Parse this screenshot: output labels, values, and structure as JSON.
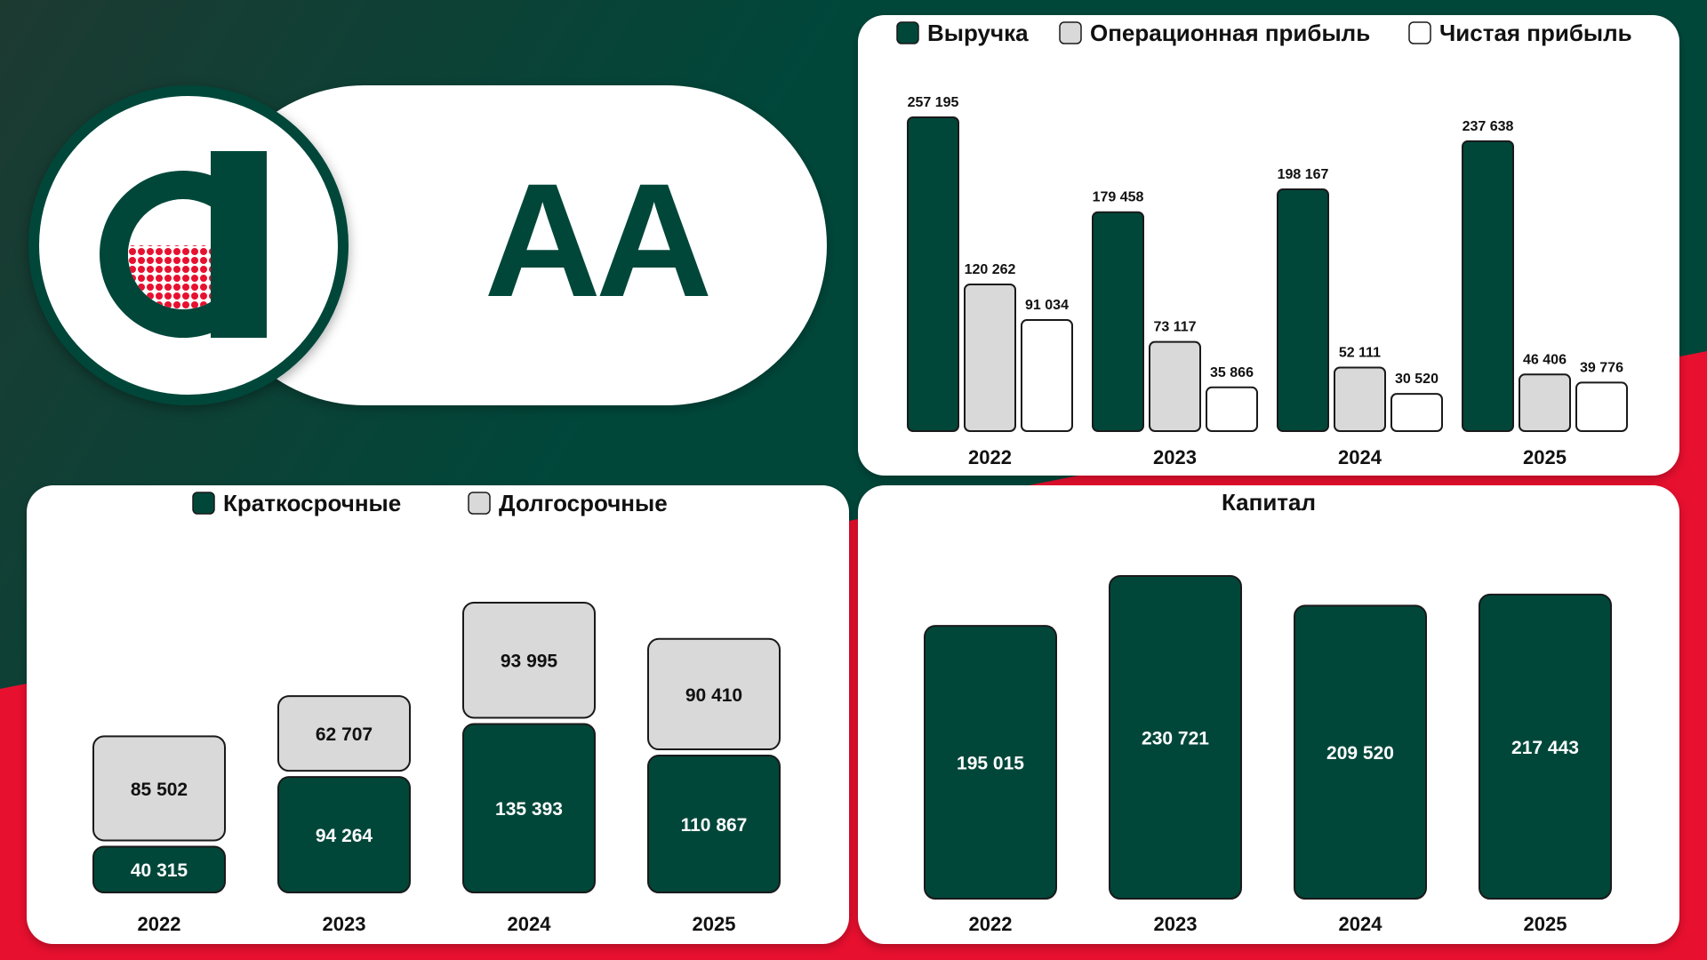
{
  "colors": {
    "dark_green": "#00473a",
    "light_gray": "#d9d9d9",
    "white": "#ffffff",
    "red": "#e8102f",
    "outline": "#1a1a1a"
  },
  "logo": {
    "ticker": "AA",
    "icon": "a-letter-logo-icon"
  },
  "chart_data": [
    {
      "type": "bar",
      "categories": [
        "2022",
        "2023",
        "2024",
        "2025"
      ],
      "series": [
        {
          "name": "Выручка",
          "values": [
            257195,
            179458,
            198167,
            237638
          ],
          "labels": [
            "257 195",
            "179 458",
            "198 167",
            "237 638"
          ],
          "color": "#00473a"
        },
        {
          "name": "Операционная прибыль",
          "values": [
            120262,
            73117,
            52111,
            46406
          ],
          "labels": [
            "120 262",
            "73 117",
            "52 111",
            "46 406"
          ],
          "color": "#d9d9d9"
        },
        {
          "name": "Чистая прибыль",
          "values": [
            91034,
            35866,
            30520,
            39776
          ],
          "labels": [
            "91 034",
            "35 866",
            "30 520",
            "39 776"
          ],
          "color": "#ffffff"
        }
      ],
      "legend": "top",
      "grid": false
    },
    {
      "type": "bar",
      "stacked": true,
      "categories": [
        "2022",
        "2023",
        "2024",
        "2025"
      ],
      "series": [
        {
          "name": "Краткосрочные",
          "values": [
            40315,
            94264,
            135393,
            110867
          ],
          "labels": [
            "40 315",
            "94 264",
            "135 393",
            "110 867"
          ],
          "color": "#00473a"
        },
        {
          "name": "Долгосрочные",
          "values": [
            85502,
            62707,
            93995,
            90410
          ],
          "labels": [
            "85 502",
            "62 707",
            "93 995",
            "90 410"
          ],
          "color": "#d9d9d9"
        }
      ],
      "legend": "top",
      "grid": false
    },
    {
      "type": "bar",
      "title": "Капитал",
      "categories": [
        "2022",
        "2023",
        "2024",
        "2025"
      ],
      "values": [
        195015,
        230721,
        209520,
        217443
      ],
      "labels": [
        "195 015",
        "230 721",
        "209 520",
        "217 443"
      ],
      "color": "#00473a",
      "grid": false
    }
  ]
}
